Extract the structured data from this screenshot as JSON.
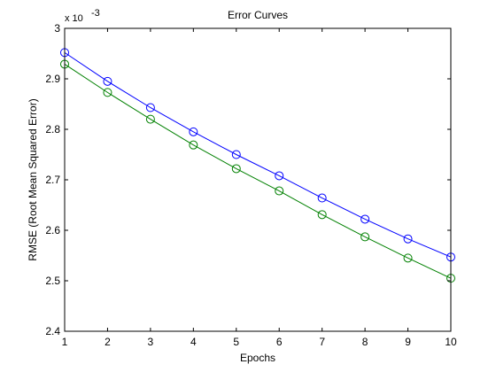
{
  "chart_data": {
    "type": "line",
    "title": "Error Curves",
    "xlabel": "Epochs",
    "ylabel": "RMSE (Root Mean Squared Error)",
    "y_multiplier_label": "x 10",
    "y_multiplier_exponent": "-3",
    "xlim": [
      1,
      10
    ],
    "ylim": [
      2.4,
      3.0
    ],
    "x_ticks": [
      "1",
      "2",
      "3",
      "4",
      "5",
      "6",
      "7",
      "8",
      "9",
      "10"
    ],
    "y_ticks": [
      "2.4",
      "2.5",
      "2.6",
      "2.7",
      "2.8",
      "2.9",
      "3"
    ],
    "grid": false,
    "legend": "none",
    "x": [
      1,
      2,
      3,
      4,
      5,
      6,
      7,
      8,
      9,
      10
    ],
    "series": [
      {
        "color": "#0000ff",
        "marker": "circle",
        "values": [
          2.952,
          2.895,
          2.843,
          2.795,
          2.75,
          2.708,
          2.664,
          2.622,
          2.583,
          2.547
        ]
      },
      {
        "color": "#008000",
        "marker": "circle",
        "values": [
          2.929,
          2.873,
          2.82,
          2.769,
          2.722,
          2.678,
          2.631,
          2.587,
          2.545,
          2.505
        ]
      }
    ]
  }
}
